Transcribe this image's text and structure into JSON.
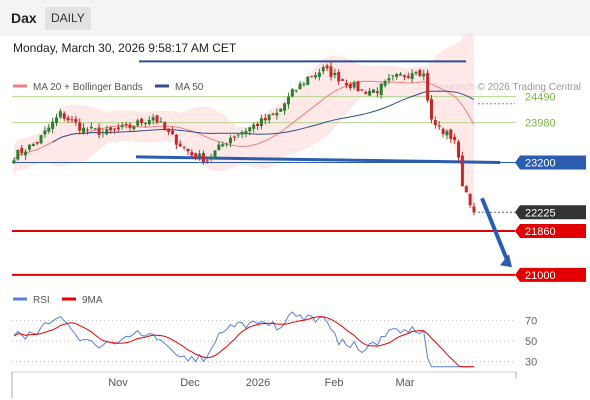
{
  "header": {
    "symbol": "Dax",
    "timeframe": "DAILY",
    "datetime": "Monday, March 30, 2026 9:58:17 AM CET"
  },
  "colors": {
    "ma20": "#f08080",
    "ma50": "#2e4f8f",
    "bollinger_band": "#fde0e0",
    "candle_up": "#2e7d32",
    "candle_down": "#c62828",
    "resistance": "#b5d690",
    "support_blue": "#2a5db0",
    "support_red": "#e30000",
    "rsi": "#5a7fd6",
    "rsi_ma": "#e30000",
    "last_price": "#333333"
  },
  "chart_data": [
    {
      "type": "candlestick",
      "title": "",
      "legend": [
        {
          "label": "MA 20 + Bollinger Bands",
          "color": "#f08080"
        },
        {
          "label": "MA 50",
          "color": "#2e4f8f"
        }
      ],
      "credit": "Research © 2026 Trading Central",
      "x_ticks": [
        "Nov",
        "Dec",
        "2026",
        "Feb",
        "Mar"
      ],
      "y_range": [
        20900,
        25500
      ],
      "levels": [
        {
          "label": "24490",
          "value": 24490,
          "kind": "resistance"
        },
        {
          "label": "23980",
          "value": 23980,
          "kind": "resistance"
        },
        {
          "label": "23200",
          "value": 23200,
          "kind": "support"
        },
        {
          "label": "22225",
          "value": 22225,
          "kind": "last"
        },
        {
          "label": "21860",
          "value": 21860,
          "kind": "target"
        },
        {
          "label": "21000",
          "value": 21000,
          "kind": "target"
        }
      ],
      "channel_high": 25180,
      "channel_low": 23200,
      "channel_low_left": 23310,
      "arrow": {
        "from": 22500,
        "to": 21150
      }
    },
    {
      "type": "line",
      "title": "",
      "legend": [
        {
          "label": "RSI",
          "color": "#5a7fd6"
        },
        {
          "label": "9MA",
          "color": "#e30000"
        }
      ],
      "y_ticks": [
        70,
        50,
        30
      ],
      "y_range": [
        20,
        80
      ]
    }
  ]
}
